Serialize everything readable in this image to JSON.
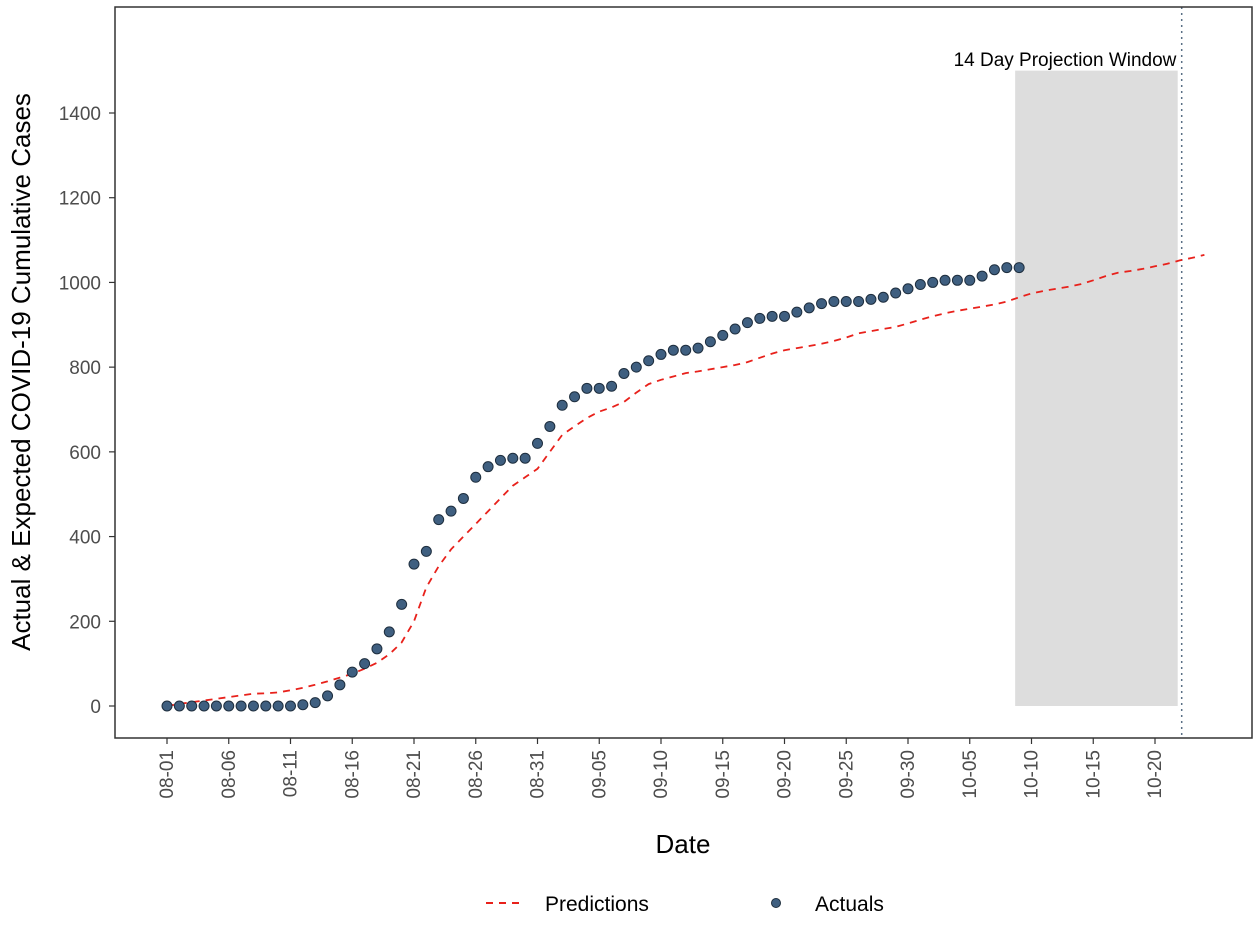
{
  "chart_data": {
    "type": "line",
    "title": "",
    "xlabel": "Date",
    "ylabel": "Actual & Expected COVID-19 Cumulative Cases",
    "x_ticks": [
      "08-01",
      "08-06",
      "08-11",
      "08-16",
      "08-21",
      "08-26",
      "08-31",
      "09-05",
      "09-10",
      "09-15",
      "09-20",
      "09-25",
      "09-30",
      "10-05",
      "10-10",
      "10-15",
      "10-20"
    ],
    "y_ticks": [
      "0",
      "200",
      "400",
      "600",
      "800",
      "1000",
      "1200",
      "1400"
    ],
    "ylim": [
      -75,
      1655
    ],
    "grid": false,
    "legend_position": "bottom",
    "annotation": {
      "label": "14 Day Projection Window",
      "shaded_from": "10-09",
      "shaded_to": "10-22",
      "shaded_ymax": 1500,
      "vline_at": "10-22",
      "fill": "#dddddd"
    },
    "series": [
      {
        "name": "Predictions",
        "style": "dashed",
        "color": "#e8211b",
        "start_date": "08-01",
        "values": [
          0,
          5,
          9,
          13,
          17,
          21,
          25,
          29,
          30,
          32,
          37,
          43,
          50,
          58,
          67,
          76,
          88,
          102,
          122,
          150,
          200,
          280,
          330,
          370,
          400,
          430,
          460,
          490,
          520,
          540,
          560,
          600,
          640,
          660,
          680,
          695,
          705,
          718,
          740,
          760,
          770,
          778,
          786,
          790,
          795,
          800,
          805,
          812,
          822,
          832,
          840,
          845,
          850,
          855,
          862,
          870,
          880,
          885,
          890,
          895,
          903,
          912,
          920,
          927,
          933,
          938,
          943,
          948,
          955,
          965,
          974,
          980,
          985,
          990,
          996,
          1005,
          1015,
          1023,
          1027,
          1032,
          1038,
          1044,
          1052,
          1058,
          1065
        ]
      },
      {
        "name": "Actuals",
        "style": "points",
        "color": "#3f5f80",
        "start_date": "08-01",
        "values": [
          0,
          0,
          0,
          0,
          0,
          0,
          0,
          0,
          0,
          0,
          0,
          3,
          8,
          24,
          50,
          80,
          100,
          135,
          175,
          240,
          335,
          365,
          440,
          460,
          490,
          540,
          565,
          580,
          585,
          585,
          620,
          660,
          710,
          730,
          750,
          750,
          755,
          785,
          800,
          815,
          830,
          840,
          840,
          845,
          860,
          875,
          890,
          905,
          915,
          920,
          920,
          930,
          940,
          950,
          955,
          955,
          955,
          960,
          965,
          975,
          985,
          995,
          1000,
          1005,
          1005,
          1005,
          1015,
          1030,
          1035,
          1035
        ]
      }
    ]
  }
}
